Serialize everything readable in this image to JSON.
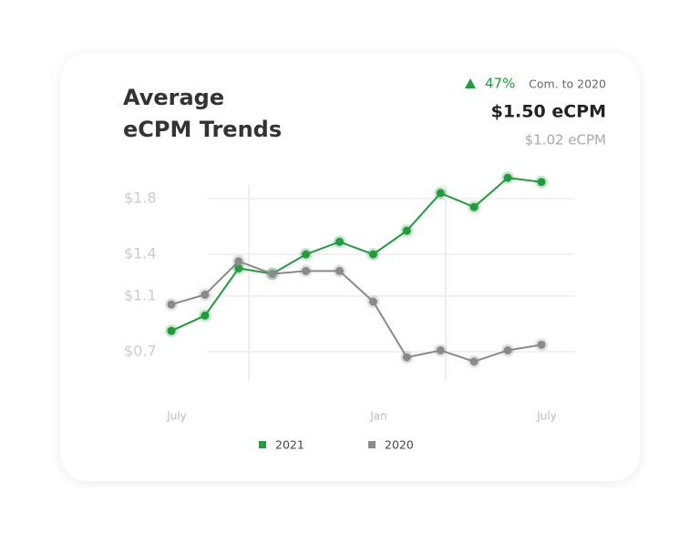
{
  "header": {
    "change": "47%",
    "comparison": "Com. to 2020",
    "current": "$1.50 eCPM",
    "previous": "$1.02 eCPM"
  },
  "chart_data": {
    "type": "line",
    "title": [
      "Average",
      "eCPM Trends"
    ],
    "categories": [
      "July",
      null,
      null,
      null,
      null,
      null,
      "Jan",
      null,
      null,
      null,
      null,
      "July"
    ],
    "series": [
      {
        "name": "2021",
        "color": "#1f9d3c",
        "values": [
          0.85,
          0.96,
          1.3,
          1.26,
          1.4,
          1.49,
          1.4,
          1.57,
          1.84,
          1.74,
          1.95,
          1.92
        ]
      },
      {
        "name": "2020",
        "color": "#8a8a8a",
        "values": [
          1.04,
          1.11,
          1.35,
          1.26,
          1.28,
          1.28,
          1.06,
          0.66,
          0.71,
          0.63,
          0.71,
          0.75
        ]
      }
    ],
    "ylim": [
      0.55,
      2.0
    ],
    "yticks": [
      {
        "value": 0.7,
        "label": "$0.7"
      },
      {
        "value": 1.1,
        "label": "$1.1"
      },
      {
        "value": 1.4,
        "label": "$1.4"
      },
      {
        "value": 1.8,
        "label": "$1.8"
      }
    ],
    "grid": true
  }
}
